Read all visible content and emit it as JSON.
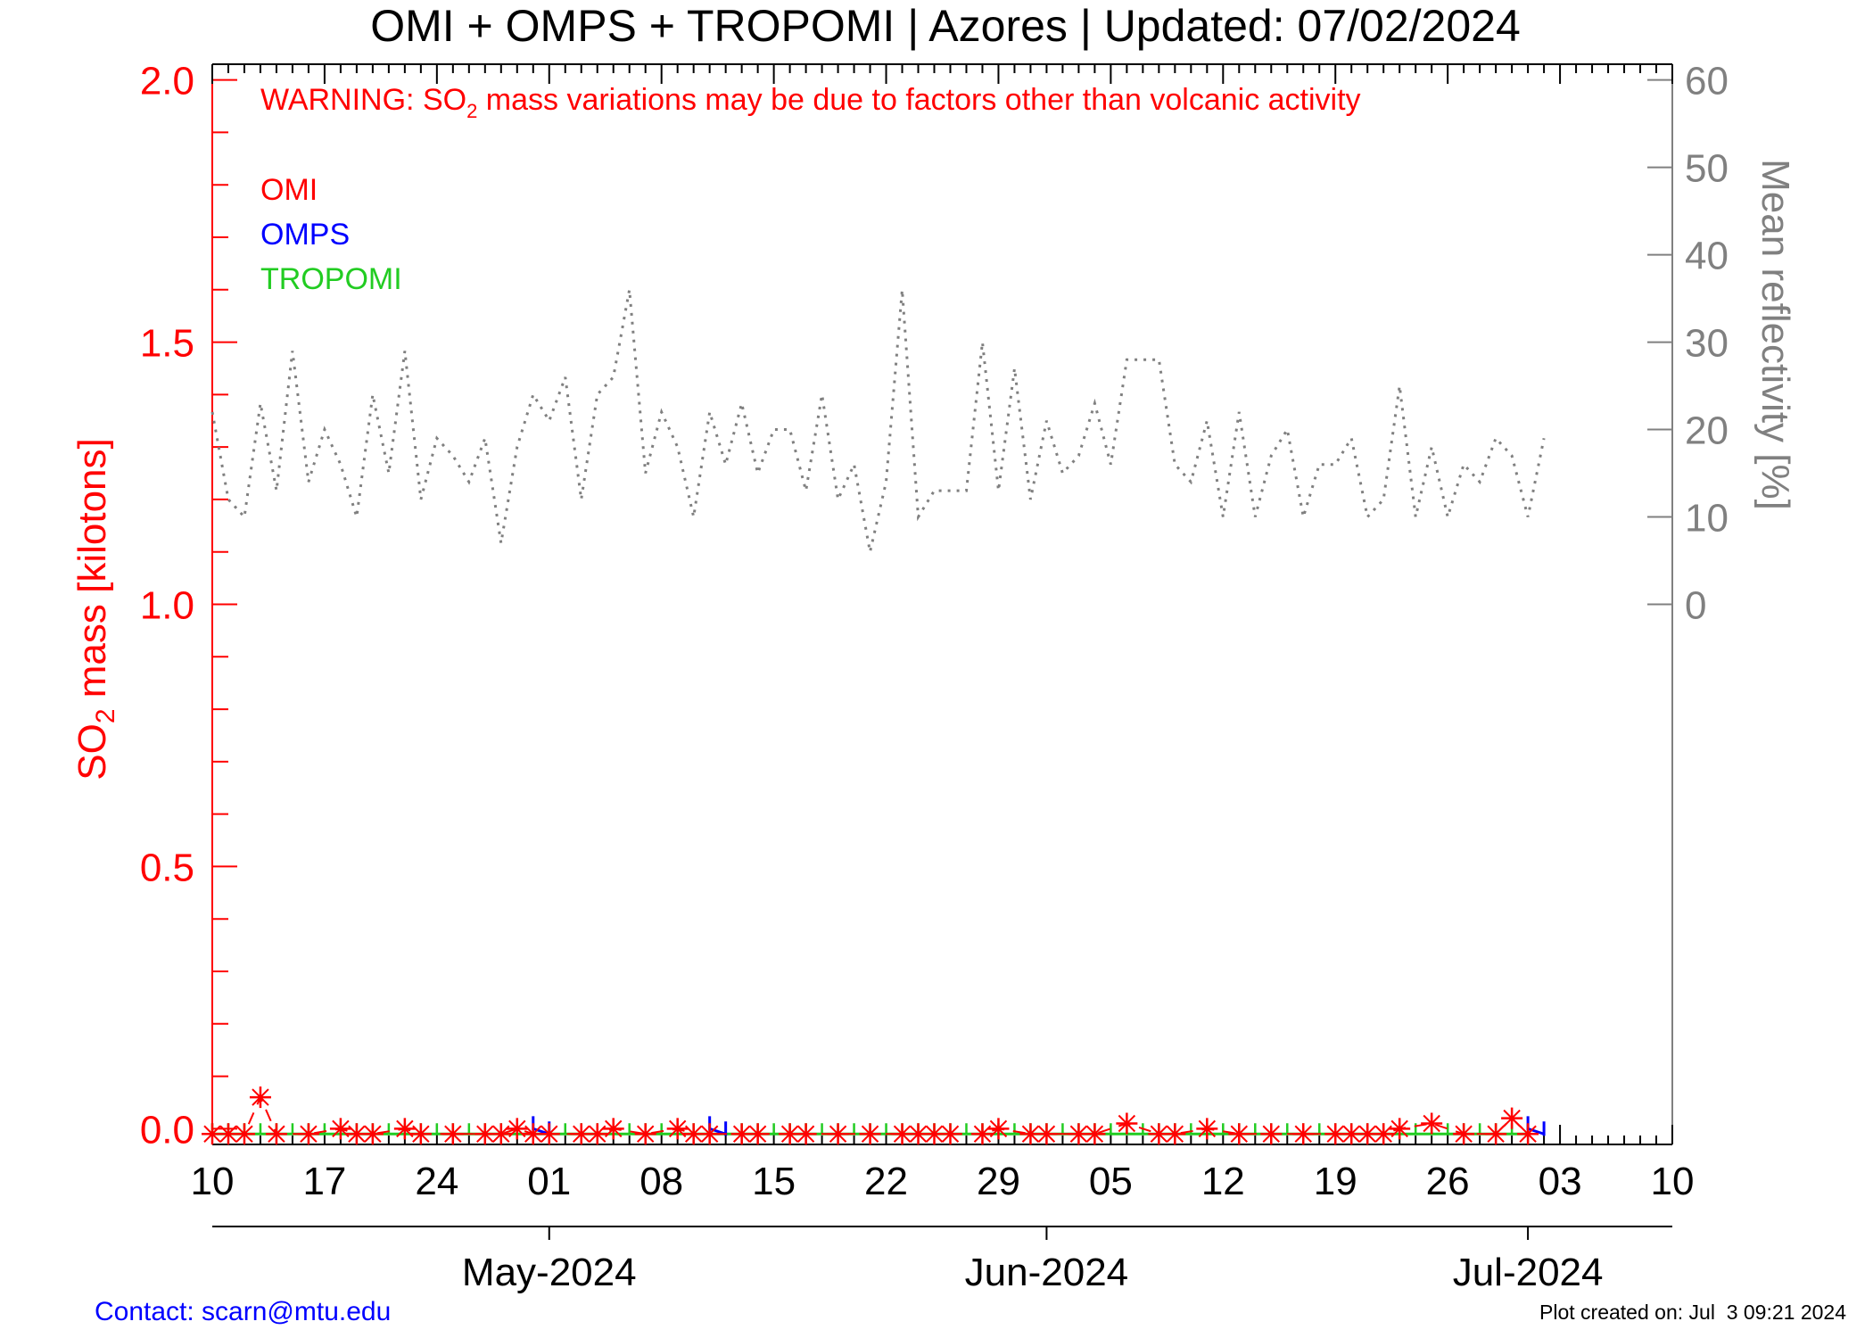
{
  "title": "OMI + OMPS + TROPOMI | Azores | Updated: 07/02/2024",
  "warning": {
    "prefix": "WARNING: SO",
    "subscript": "2",
    "suffix": " mass variations may be due to factors other than volcanic activity"
  },
  "legend": [
    "OMI",
    "OMPS",
    "TROPOMI"
  ],
  "contact": "Contact: scarn@mtu.edu",
  "plot_created": "Plot created on: Jul  3 09:21 2024",
  "colors": {
    "omi": "#ff0000",
    "omps": "#0000ff",
    "tropomi": "#22cc22",
    "reflectivity": "#808080",
    "axis": "#000000"
  },
  "chart_data": {
    "type": "line",
    "title": "OMI + OMPS + TROPOMI | Azores | Updated: 07/02/2024",
    "ylabel": {
      "prefix": "SO",
      "subscript": "2",
      "suffix": " mass [kilotons]"
    },
    "y2label": "Mean reflectivity [%]",
    "xlim": [
      "2024-04-10",
      "2024-07-10"
    ],
    "ylim": [
      -0.03,
      2.03
    ],
    "y2lim": [
      0,
      60
    ],
    "y_ticks": [
      "0.0",
      "0.5",
      "1.0",
      "1.5",
      "2.0"
    ],
    "y2_ticks": [
      "0",
      "10",
      "20",
      "30",
      "40",
      "50",
      "60"
    ],
    "x_day_ticks": [
      "10",
      "17",
      "24",
      "01",
      "08",
      "15",
      "22",
      "29",
      "05",
      "12",
      "19",
      "26",
      "03",
      "10"
    ],
    "x_month_labels": [
      "May-2024",
      "Jun-2024",
      "Jul-2024"
    ],
    "grid": false,
    "legend_position": "top-left",
    "series": [
      {
        "name": "OMI",
        "marker": "asterisk",
        "x": [
          "2024-04-10",
          "2024-04-11",
          "2024-04-12",
          "2024-04-13",
          "2024-04-14",
          "2024-04-16",
          "2024-04-18",
          "2024-04-19",
          "2024-04-20",
          "2024-04-22",
          "2024-04-23",
          "2024-04-25",
          "2024-04-27",
          "2024-04-28",
          "2024-04-29",
          "2024-04-30",
          "2024-05-01",
          "2024-05-03",
          "2024-05-04",
          "2024-05-05",
          "2024-05-07",
          "2024-05-09",
          "2024-05-10",
          "2024-05-11",
          "2024-05-13",
          "2024-05-14",
          "2024-05-16",
          "2024-05-17",
          "2024-05-19",
          "2024-05-21",
          "2024-05-23",
          "2024-05-24",
          "2024-05-25",
          "2024-05-26",
          "2024-05-28",
          "2024-05-29",
          "2024-05-31",
          "2024-06-01",
          "2024-06-03",
          "2024-06-04",
          "2024-06-06",
          "2024-06-08",
          "2024-06-09",
          "2024-06-11",
          "2024-06-13",
          "2024-06-15",
          "2024-06-17",
          "2024-06-19",
          "2024-06-20",
          "2024-06-21",
          "2024-06-22",
          "2024-06-23",
          "2024-06-25",
          "2024-06-27",
          "2024-06-29",
          "2024-06-30",
          "2024-07-01"
        ],
        "values": [
          -0.01,
          -0.01,
          -0.01,
          0.06,
          -0.01,
          -0.01,
          0.0,
          -0.01,
          -0.01,
          0.0,
          -0.01,
          -0.01,
          -0.01,
          -0.01,
          0.0,
          -0.01,
          -0.01,
          -0.01,
          -0.01,
          0.0,
          -0.01,
          0.0,
          -0.01,
          -0.01,
          -0.01,
          -0.01,
          -0.01,
          -0.01,
          -0.01,
          -0.01,
          -0.01,
          -0.01,
          -0.01,
          -0.01,
          -0.01,
          0.0,
          -0.01,
          -0.01,
          -0.01,
          -0.01,
          0.01,
          -0.01,
          -0.01,
          0.0,
          -0.01,
          -0.01,
          -0.01,
          -0.01,
          -0.01,
          -0.01,
          -0.01,
          0.0,
          0.01,
          -0.01,
          -0.01,
          0.02,
          -0.01
        ]
      },
      {
        "name": "OMPS",
        "marker": "tick",
        "x": [
          "2024-04-30",
          "2024-05-01",
          "2024-05-11",
          "2024-05-12",
          "2024-07-01",
          "2024-07-02"
        ],
        "values": [
          0.0,
          -0.01,
          0.0,
          -0.01,
          0.0,
          -0.01
        ]
      },
      {
        "name": "TROPOMI",
        "marker": "tick",
        "x": [
          "2024-04-10",
          "2024-07-01"
        ],
        "values": [
          -0.01,
          -0.01
        ],
        "daily": true
      },
      {
        "name": "Mean reflectivity",
        "axis": "right",
        "style": "dotted",
        "x": [
          "2024-04-10",
          "2024-04-11",
          "2024-04-12",
          "2024-04-13",
          "2024-04-14",
          "2024-04-15",
          "2024-04-16",
          "2024-04-17",
          "2024-04-18",
          "2024-04-19",
          "2024-04-20",
          "2024-04-21",
          "2024-04-22",
          "2024-04-23",
          "2024-04-24",
          "2024-04-25",
          "2024-04-26",
          "2024-04-27",
          "2024-04-28",
          "2024-04-29",
          "2024-04-30",
          "2024-05-01",
          "2024-05-02",
          "2024-05-03",
          "2024-05-04",
          "2024-05-05",
          "2024-05-06",
          "2024-05-07",
          "2024-05-08",
          "2024-05-09",
          "2024-05-10",
          "2024-05-11",
          "2024-05-12",
          "2024-05-13",
          "2024-05-14",
          "2024-05-15",
          "2024-05-16",
          "2024-05-17",
          "2024-05-18",
          "2024-05-19",
          "2024-05-20",
          "2024-05-21",
          "2024-05-22",
          "2024-05-23",
          "2024-05-24",
          "2024-05-25",
          "2024-05-26",
          "2024-05-27",
          "2024-05-28",
          "2024-05-29",
          "2024-05-30",
          "2024-05-31",
          "2024-06-01",
          "2024-06-02",
          "2024-06-03",
          "2024-06-04",
          "2024-06-05",
          "2024-06-06",
          "2024-06-07",
          "2024-06-08",
          "2024-06-09",
          "2024-06-10",
          "2024-06-11",
          "2024-06-12",
          "2024-06-13",
          "2024-06-14",
          "2024-06-15",
          "2024-06-16",
          "2024-06-17",
          "2024-06-18",
          "2024-06-19",
          "2024-06-20",
          "2024-06-21",
          "2024-06-22",
          "2024-06-23",
          "2024-06-24",
          "2024-06-25",
          "2024-06-26",
          "2024-06-27",
          "2024-06-28",
          "2024-06-29",
          "2024-06-30",
          "2024-07-01",
          "2024-07-02"
        ],
        "values": [
          22,
          12,
          10,
          23,
          13,
          29,
          14,
          20,
          16,
          10,
          24,
          15,
          29,
          12,
          19,
          17,
          14,
          19,
          7,
          18,
          24,
          21,
          26,
          12,
          24,
          26,
          36,
          15,
          22,
          18,
          10,
          22,
          16,
          23,
          15,
          20,
          20,
          13,
          24,
          12,
          16,
          6,
          14,
          36,
          10,
          13,
          13,
          13,
          30,
          13,
          27,
          12,
          21,
          15,
          17,
          23,
          16,
          28,
          28,
          28,
          16,
          14,
          21,
          10,
          22,
          10,
          17,
          20,
          10,
          16,
          16,
          19,
          10,
          12,
          25,
          10,
          18,
          10,
          16,
          14,
          19,
          17,
          10,
          19
        ]
      }
    ]
  }
}
